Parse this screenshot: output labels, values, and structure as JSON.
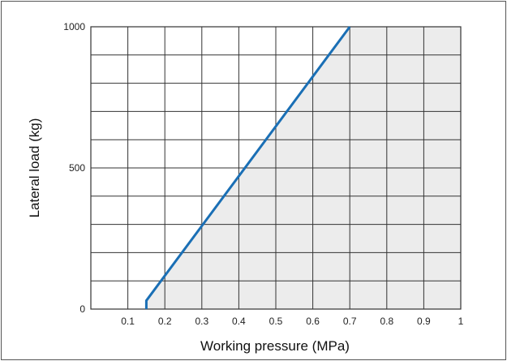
{
  "chart_data": {
    "type": "line",
    "title": "",
    "xlabel": "Working pressure (MPa)",
    "ylabel": "Lateral load (kg)",
    "xlim": [
      0,
      1
    ],
    "ylim": [
      0,
      1000
    ],
    "x_ticks": [
      "0.1",
      "0.2",
      "0.3",
      "0.4",
      "0.5",
      "0.6",
      "0.7",
      "0.8",
      "0.9",
      "1"
    ],
    "y_ticks": [
      "0",
      "500",
      "1000"
    ],
    "grid": true,
    "series": [
      {
        "x": [
          0.15,
          0.15,
          0.7
        ],
        "y": [
          0,
          30,
          1000
        ],
        "color": "#1a6fb5"
      }
    ],
    "shaded_region": {
      "description_color": "#ececec",
      "boundary_x": [
        0.15,
        0.15,
        0.7,
        1,
        1
      ],
      "boundary_y": [
        0,
        30,
        1000,
        1000,
        0
      ]
    },
    "colors": {
      "line": "#1a6fb5",
      "shade": "#ececec",
      "grid": "#333333",
      "frame": "#333333"
    }
  }
}
